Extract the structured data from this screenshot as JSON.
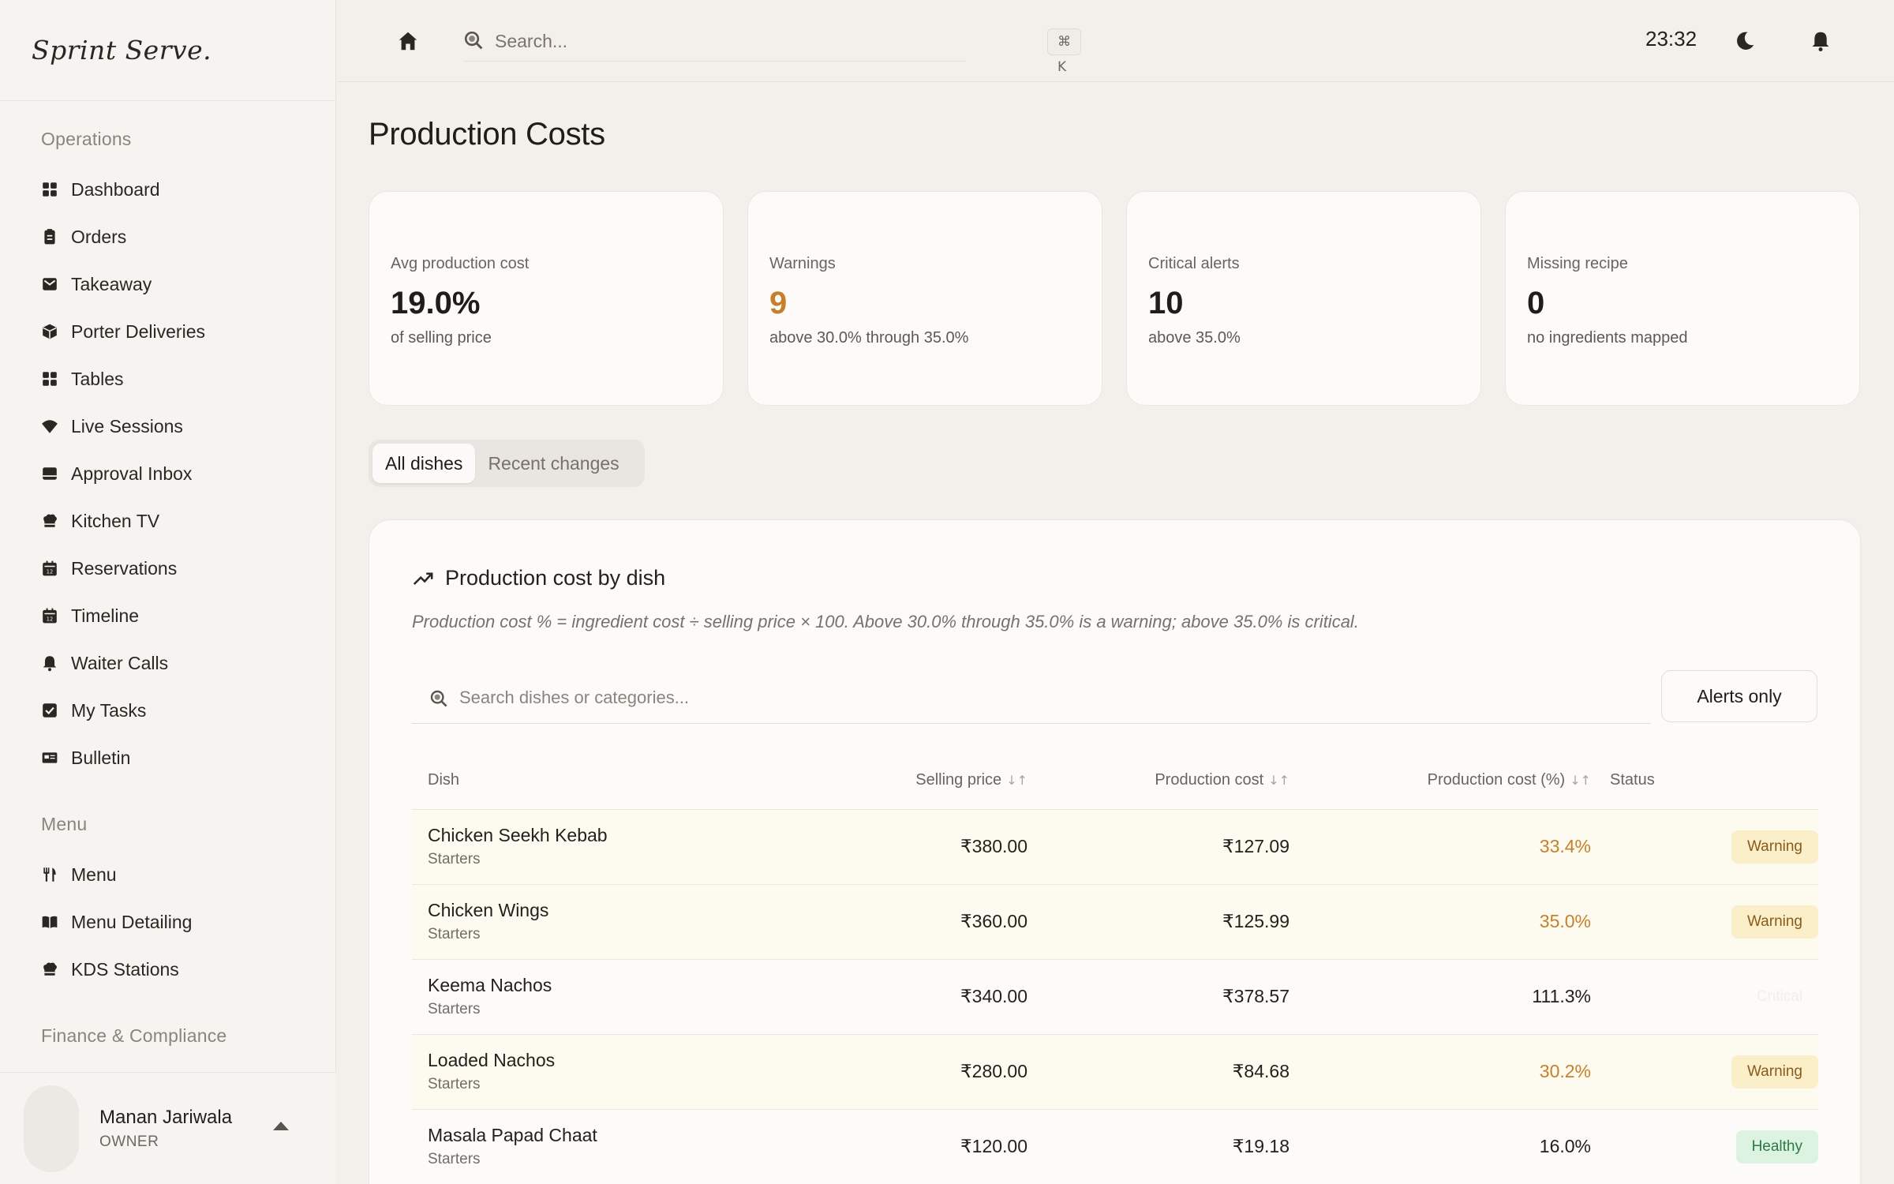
{
  "brand": "Sprint Serve.",
  "sidebar": {
    "operations_title": "Operations",
    "operations": [
      {
        "label": "Dashboard",
        "icon": "dashboard-icon"
      },
      {
        "label": "Orders",
        "icon": "clipboard-icon"
      },
      {
        "label": "Takeaway",
        "icon": "mail-icon"
      },
      {
        "label": "Porter Deliveries",
        "icon": "package-icon"
      },
      {
        "label": "Tables",
        "icon": "grid-icon"
      },
      {
        "label": "Live Sessions",
        "icon": "wifi-icon"
      },
      {
        "label": "Approval Inbox",
        "icon": "inbox-icon"
      },
      {
        "label": "Kitchen TV",
        "icon": "chef-hat-icon"
      },
      {
        "label": "Reservations",
        "icon": "calendar-icon"
      },
      {
        "label": "Timeline",
        "icon": "calendar-icon"
      },
      {
        "label": "Waiter Calls",
        "icon": "bell-icon"
      },
      {
        "label": "My Tasks",
        "icon": "checkbox-icon"
      },
      {
        "label": "Bulletin",
        "icon": "newspaper-icon"
      }
    ],
    "menu_title": "Menu",
    "menu": [
      {
        "label": "Menu",
        "icon": "utensils-icon"
      },
      {
        "label": "Menu Detailing",
        "icon": "book-icon"
      },
      {
        "label": "KDS Stations",
        "icon": "chef-hat-icon"
      }
    ],
    "finance_title": "Finance & Compliance"
  },
  "user": {
    "name": "Manan Jariwala",
    "role": "OWNER"
  },
  "topbar": {
    "search_placeholder": "Search...",
    "shortcut": "⌘ K",
    "time": "23:32"
  },
  "page": {
    "title": "Production Costs"
  },
  "stats": [
    {
      "label": "Avg production cost",
      "value": "19.0%",
      "sub": "of selling price"
    },
    {
      "label": "Warnings",
      "value": "9",
      "sub": "above 30.0% through 35.0%"
    },
    {
      "label": "Critical alerts",
      "value": "10",
      "sub": "above 35.0%"
    },
    {
      "label": "Missing recipe",
      "value": "0",
      "sub": "no ingredients mapped"
    }
  ],
  "tabs": {
    "all": "All dishes",
    "recent": "Recent changes"
  },
  "panel": {
    "title": "Production cost by dish",
    "description": "Production cost % = ingredient cost ÷ selling price × 100. Above 30.0% through 35.0% is a warning; above 35.0% is critical.",
    "search_placeholder": "Search dishes or categories...",
    "alerts_button": "Alerts only"
  },
  "table": {
    "headers": {
      "dish": "Dish",
      "price": "Selling price",
      "cost": "Production cost",
      "pct": "Production cost (%)",
      "status": "Status"
    },
    "sort_glyph": "↓↑",
    "rows": [
      {
        "dish": "Chicken Seekh Kebab",
        "category": "Starters",
        "price": "₹380.00",
        "cost": "₹127.09",
        "pct": "33.4%",
        "status": "Warning"
      },
      {
        "dish": "Chicken Wings",
        "category": "Starters",
        "price": "₹360.00",
        "cost": "₹125.99",
        "pct": "35.0%",
        "status": "Warning"
      },
      {
        "dish": "Keema Nachos",
        "category": "Starters",
        "price": "₹340.00",
        "cost": "₹378.57",
        "pct": "111.3%",
        "status": "Critical"
      },
      {
        "dish": "Loaded Nachos",
        "category": "Starters",
        "price": "₹280.00",
        "cost": "₹84.68",
        "pct": "30.2%",
        "status": "Warning"
      },
      {
        "dish": "Masala Papad Chaat",
        "category": "Starters",
        "price": "₹120.00",
        "cost": "₹19.18",
        "pct": "16.0%",
        "status": "Healthy"
      }
    ]
  },
  "colors": {
    "warning": "#c7802a",
    "healthy": "#2c7a45",
    "accent": "#1f1c19"
  }
}
